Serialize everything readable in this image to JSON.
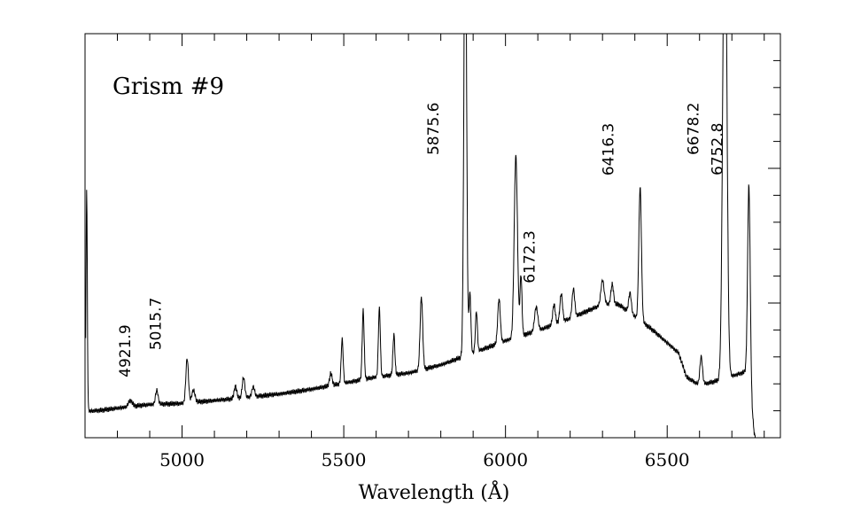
{
  "chart_data": {
    "type": "line",
    "title": "",
    "xlabel": "Wavelength (Å)",
    "ylabel": "",
    "xlim": [
      4700,
      6850
    ],
    "ylim": [
      0,
      1
    ],
    "x_ticks": [
      5000,
      5500,
      6000,
      6500
    ],
    "x_tick_labels": [
      "5000",
      "5500",
      "6000",
      "6500"
    ],
    "x_minor_step": 100,
    "y_minor_ticks": 15,
    "y_ticks_labeled": false,
    "grid": false,
    "legend": "none",
    "annotation": "Grism #9",
    "line_labels": [
      {
        "wavelength": 4921.9,
        "text": "4921.9"
      },
      {
        "wavelength": 5015.7,
        "text": "5015.7"
      },
      {
        "wavelength": 5875.6,
        "text": "5875.6"
      },
      {
        "wavelength": 6172.3,
        "text": "6172.3"
      },
      {
        "wavelength": 6416.3,
        "text": "6416.3"
      },
      {
        "wavelength": 6678.2,
        "text": "6678.2"
      },
      {
        "wavelength": 6752.8,
        "text": "6752.8"
      }
    ],
    "continuum": [
      [
        4700,
        0.065
      ],
      [
        4750,
        0.068
      ],
      [
        4800,
        0.073
      ],
      [
        4850,
        0.078
      ],
      [
        4900,
        0.082
      ],
      [
        5000,
        0.085
      ],
      [
        5100,
        0.092
      ],
      [
        5200,
        0.1
      ],
      [
        5300,
        0.108
      ],
      [
        5400,
        0.12
      ],
      [
        5500,
        0.135
      ],
      [
        5600,
        0.15
      ],
      [
        5700,
        0.16
      ],
      [
        5800,
        0.18
      ],
      [
        5900,
        0.21
      ],
      [
        6000,
        0.24
      ],
      [
        6100,
        0.265
      ],
      [
        6200,
        0.295
      ],
      [
        6300,
        0.33
      ],
      [
        6350,
        0.33
      ],
      [
        6400,
        0.3
      ],
      [
        6450,
        0.27
      ],
      [
        6500,
        0.235
      ],
      [
        6535,
        0.21
      ],
      [
        6560,
        0.15
      ],
      [
        6600,
        0.13
      ],
      [
        6650,
        0.14
      ],
      [
        6690,
        0.15
      ],
      [
        6750,
        0.165
      ],
      [
        6770,
        0.005
      ]
    ],
    "features": [
      {
        "x": 4705,
        "h": 0.55,
        "w": 2
      },
      {
        "x": 4840,
        "h": 0.015,
        "w": 6
      },
      {
        "x": 4921.9,
        "h": 0.035,
        "w": 4
      },
      {
        "x": 5015.7,
        "h": 0.11,
        "w": 4
      },
      {
        "x": 5035,
        "h": 0.03,
        "w": 5
      },
      {
        "x": 5165,
        "h": 0.03,
        "w": 4
      },
      {
        "x": 5190,
        "h": 0.05,
        "w": 4
      },
      {
        "x": 5220,
        "h": 0.025,
        "w": 4
      },
      {
        "x": 5460,
        "h": 0.03,
        "w": 4
      },
      {
        "x": 5495,
        "h": 0.11,
        "w": 3
      },
      {
        "x": 5560,
        "h": 0.17,
        "w": 3
      },
      {
        "x": 5610,
        "h": 0.17,
        "w": 3
      },
      {
        "x": 5655,
        "h": 0.1,
        "w": 3
      },
      {
        "x": 5740,
        "h": 0.18,
        "w": 4
      },
      {
        "x": 5875.6,
        "h": 1.2,
        "w": 4
      },
      {
        "x": 5890,
        "h": 0.15,
        "w": 3
      },
      {
        "x": 5910,
        "h": 0.1,
        "w": 3
      },
      {
        "x": 5980,
        "h": 0.11,
        "w": 4
      },
      {
        "x": 6032,
        "h": 0.45,
        "w": 5
      },
      {
        "x": 6048,
        "h": 0.15,
        "w": 3
      },
      {
        "x": 6095,
        "h": 0.06,
        "w": 5
      },
      {
        "x": 6150,
        "h": 0.05,
        "w": 4
      },
      {
        "x": 6172.3,
        "h": 0.07,
        "w": 4
      },
      {
        "x": 6210,
        "h": 0.07,
        "w": 4
      },
      {
        "x": 6300,
        "h": 0.06,
        "w": 5
      },
      {
        "x": 6330,
        "h": 0.05,
        "w": 4
      },
      {
        "x": 6385,
        "h": 0.05,
        "w": 4
      },
      {
        "x": 6416.3,
        "h": 0.33,
        "w": 4
      },
      {
        "x": 6605,
        "h": 0.07,
        "w": 4
      },
      {
        "x": 6678.2,
        "h": 1.3,
        "w": 6
      },
      {
        "x": 6752.8,
        "h": 0.48,
        "w": 4
      }
    ]
  }
}
